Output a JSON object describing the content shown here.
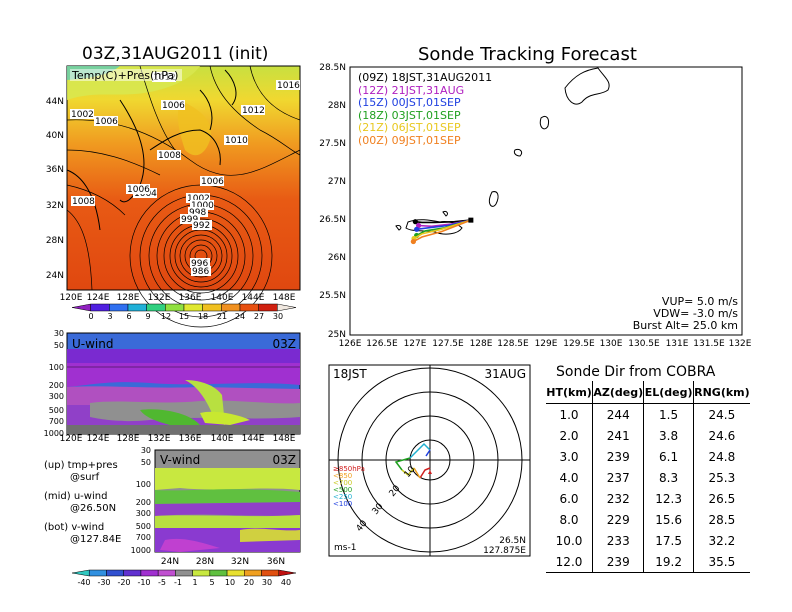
{
  "panels": {
    "init_title": "03Z,31AUG2011 (init)",
    "temp_label": "Temp(C)+Pres(hPa)",
    "temp_lat_ticks": [
      "44N",
      "40N",
      "36N",
      "32N",
      "28N",
      "24N"
    ],
    "lon_ticks": [
      "120E",
      "124E",
      "128E",
      "132E",
      "136E",
      "140E",
      "144E",
      "148E"
    ],
    "temp_colorbar": [
      "0",
      "3",
      "6",
      "9",
      "12",
      "15",
      "18",
      "21",
      "24",
      "27",
      "30"
    ],
    "temp_colorbar_colors": [
      "#9020c0",
      "#5020e0",
      "#3070f0",
      "#20b0d8",
      "#30d080",
      "#90e040",
      "#e0e830",
      "#f0c020",
      "#f09020",
      "#e85010",
      "#d02010",
      "#f0e8e0"
    ],
    "pressure_labels": [
      "1002",
      "1006",
      "1006",
      "1012",
      "1010",
      "1008",
      "1006",
      "1004",
      "1008",
      "1006",
      "1002",
      "1000",
      "998",
      "999",
      "992",
      "996",
      "986",
      "1016",
      "1012"
    ],
    "uwind_label": "U-wind",
    "uwind_time": "03Z",
    "uwind_yticks": [
      "30",
      "50",
      "100",
      "200",
      "300",
      "500",
      "700",
      "1000"
    ],
    "vwind_label": "V-wind",
    "vwind_time": "03Z",
    "vwind_yticks": [
      "30",
      "50",
      "100",
      "200",
      "300",
      "500",
      "700",
      "1000"
    ],
    "vwind_lat_ticks": [
      "24N",
      "28N",
      "32N",
      "36N"
    ],
    "wind_colorbar": [
      "-40",
      "-30",
      "-20",
      "-10",
      "-5",
      "-1",
      "1",
      "5",
      "10",
      "20",
      "30",
      "40"
    ],
    "notes": [
      {
        "head": "(up) tmp+pres",
        "sub": "@surf"
      },
      {
        "head": "(mid) u-wind",
        "sub": "@26.50N"
      },
      {
        "head": "(bot) v-wind",
        "sub": "@127.84E"
      }
    ]
  },
  "track": {
    "title": "Sonde Tracking Forecast",
    "lat_ticks": [
      "28.5N",
      "28N",
      "27.5N",
      "27N",
      "26.5N",
      "26N",
      "25.5N",
      "25N"
    ],
    "lon_ticks": [
      "126E",
      "126.5E",
      "127E",
      "127.5E",
      "128E",
      "128.5E",
      "129E",
      "129.5E",
      "130E",
      "130.5E",
      "131E",
      "131.5E",
      "132E"
    ],
    "legend": [
      {
        "label": "(09Z)  18JST,31AUG2011",
        "color": "#000000"
      },
      {
        "label": "(12Z)  21JST,31AUG",
        "color": "#b020c0"
      },
      {
        "label": "(15Z)  00JST,01SEP",
        "color": "#2040e0"
      },
      {
        "label": "(18Z)  03JST,01SEP",
        "color": "#20a020"
      },
      {
        "label": "(21Z)  06JST,01SEP",
        "color": "#e8c820"
      },
      {
        "label": "(00Z)  09JST,01SEP",
        "color": "#f08020"
      }
    ],
    "params": [
      "VUP= 5.0 m/s",
      "VDW= -3.0 m/s",
      "Burst Alt= 25.0 km"
    ]
  },
  "polar": {
    "time": "18JST",
    "date": "31AUG",
    "unit": "ms-1",
    "position": [
      "26.5N",
      "127.875E"
    ],
    "ring_labels": [
      "10",
      "20",
      "30",
      "40"
    ],
    "pressure_legend": [
      {
        "label": "≥850hPa",
        "color": "#d02020"
      },
      {
        "label": "<850",
        "color": "#f0a020"
      },
      {
        "label": "<700",
        "color": "#c8c820"
      },
      {
        "label": "<500",
        "color": "#20a020"
      },
      {
        "label": "<250",
        "color": "#20b0d0"
      },
      {
        "label": "<100",
        "color": "#2040e0"
      }
    ]
  },
  "cobra": {
    "title": "Sonde Dir from COBRA",
    "headers": [
      "HT(km)",
      "AZ(deg)",
      "EL(deg)",
      "RNG(km)"
    ],
    "rows": [
      [
        "1.0",
        "244",
        "1.5",
        "24.5"
      ],
      [
        "2.0",
        "241",
        "3.8",
        "24.6"
      ],
      [
        "3.0",
        "239",
        "6.1",
        "24.8"
      ],
      [
        "4.0",
        "237",
        "8.3",
        "25.3"
      ],
      [
        "6.0",
        "232",
        "12.3",
        "26.5"
      ],
      [
        "8.0",
        "229",
        "15.6",
        "28.5"
      ],
      [
        "10.0",
        "233",
        "17.5",
        "32.2"
      ],
      [
        "12.0",
        "239",
        "19.2",
        "35.5"
      ]
    ]
  },
  "chart_data": [
    {
      "type": "table",
      "title": "Sonde Dir from COBRA",
      "columns": [
        "HT(km)",
        "AZ(deg)",
        "EL(deg)",
        "RNG(km)"
      ],
      "rows": [
        [
          1.0,
          244,
          1.5,
          24.5
        ],
        [
          2.0,
          241,
          3.8,
          24.6
        ],
        [
          3.0,
          239,
          6.1,
          24.8
        ],
        [
          4.0,
          237,
          8.3,
          25.3
        ],
        [
          6.0,
          232,
          12.3,
          26.5
        ],
        [
          8.0,
          229,
          15.6,
          28.5
        ],
        [
          10.0,
          233,
          17.5,
          32.2
        ],
        [
          12.0,
          239,
          19.2,
          35.5
        ]
      ]
    },
    {
      "type": "line",
      "title": "Sonde Tracking Forecast",
      "xlim": [
        126,
        132
      ],
      "ylim": [
        25,
        28.5
      ],
      "series": [
        {
          "name": "(09Z) 18JST,31AUG2011",
          "color": "#000000",
          "x": [
            127.85,
            127.6,
            127.3,
            127.1,
            127.0
          ],
          "y": [
            26.5,
            26.48,
            26.47,
            26.47,
            26.48
          ]
        },
        {
          "name": "(12Z) 21JST,31AUG",
          "color": "#b020c0",
          "x": [
            127.85,
            127.55,
            127.25,
            127.05
          ],
          "y": [
            26.5,
            26.45,
            26.42,
            26.43
          ]
        },
        {
          "name": "(15Z) 00JST,01SEP",
          "color": "#2040e0",
          "x": [
            127.85,
            127.5,
            127.2,
            127.02
          ],
          "y": [
            26.5,
            26.43,
            26.4,
            26.38
          ]
        },
        {
          "name": "(18Z) 03JST,01SEP",
          "color": "#20a020",
          "x": [
            127.85,
            127.45,
            127.15,
            127.02
          ],
          "y": [
            26.5,
            26.4,
            26.36,
            26.3
          ]
        },
        {
          "name": "(21Z) 06JST,01SEP",
          "color": "#e8c820",
          "x": [
            127.85,
            127.4,
            127.1,
            126.98
          ],
          "y": [
            26.5,
            26.38,
            26.32,
            26.26
          ]
        },
        {
          "name": "(00Z) 09JST,01SEP",
          "color": "#f08020",
          "x": [
            127.85,
            127.4,
            127.1,
            126.97
          ],
          "y": [
            26.5,
            26.35,
            26.28,
            26.22
          ]
        }
      ]
    }
  ]
}
